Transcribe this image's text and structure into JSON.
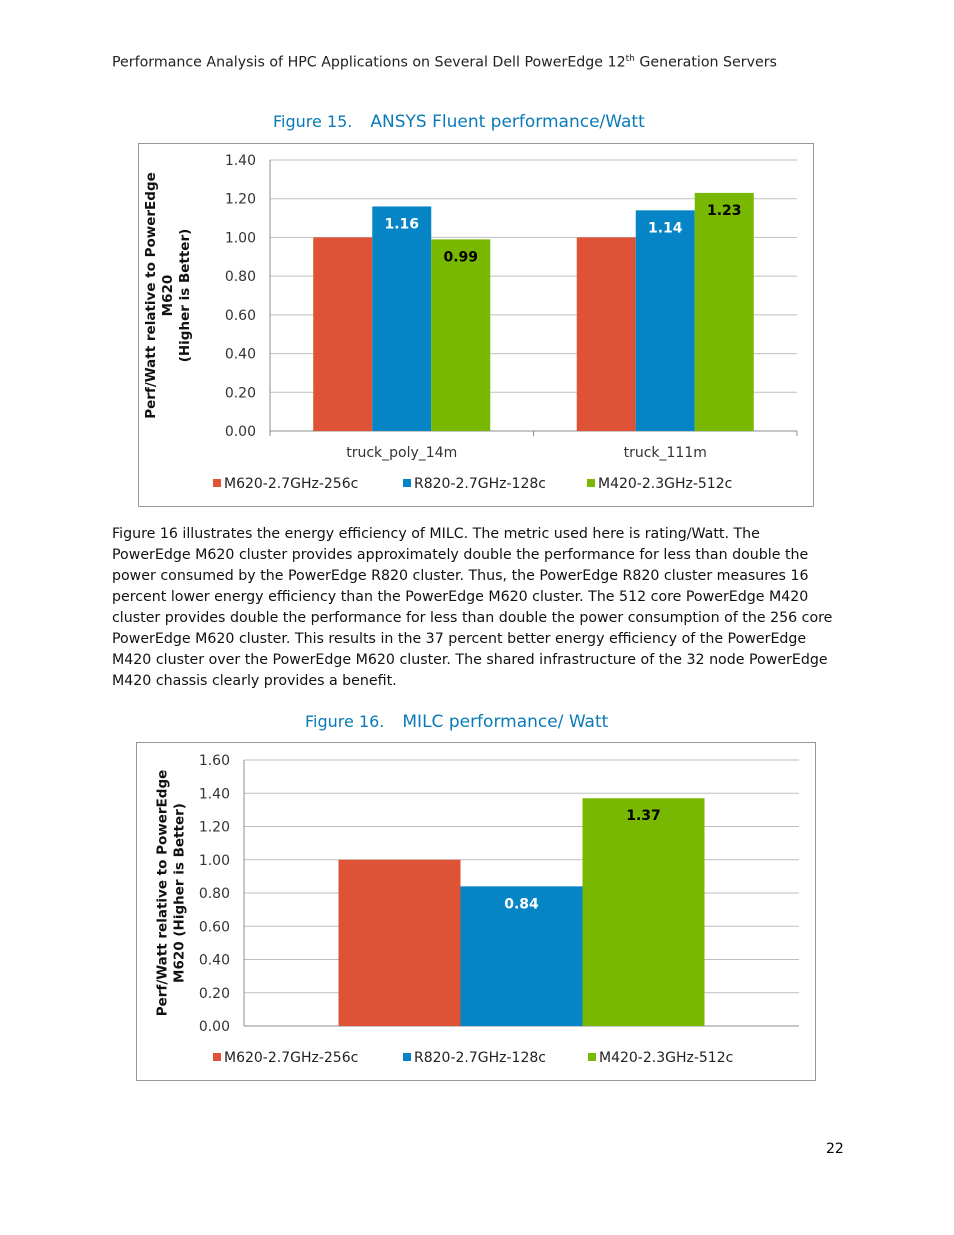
{
  "header": {
    "title_pre": "Performance Analysis of HPC Applications on Several Dell PowerEdge 12",
    "title_sup": "th",
    "title_post": " Generation Servers"
  },
  "figure15": {
    "number": "Figure 15.",
    "title": "ANSYS Fluent performance/Watt"
  },
  "figure16": {
    "number": "Figure 16.",
    "title": "MILC performance/ Watt"
  },
  "paragraph": "Figure 16 illustrates the energy efficiency of MILC. The metric used here is rating/Watt. The PowerEdge M620 cluster provides approximately double the performance for less than double the power consumed by the PowerEdge R820 cluster. Thus, the PowerEdge R820 cluster measures 16 percent lower energy efficiency than the PowerEdge M620 cluster. The 512 core PowerEdge M420 cluster provides double the performance for less than double the power consumption of the 256 core PowerEdge M620 cluster. This results in the 37 percent better energy efficiency of the PowerEdge M420 cluster over the PowerEdge M620 cluster. The shared infrastructure of the 32 node PowerEdge M420 chassis clearly provides a benefit.",
  "page_number": "22",
  "colors": {
    "m620": "#de5235",
    "r820": "#0585c6",
    "m420": "#79b800",
    "grid": "#bfbfbf",
    "axis": "#8c8c8c"
  },
  "chart_data": [
    {
      "type": "bar",
      "title": "",
      "ylabel_lines": [
        "Perf/Watt relative to PowerEdge",
        "M620",
        "(Higher is Better)"
      ],
      "xlabel": "",
      "categories": [
        "truck_poly_14m",
        "truck_111m"
      ],
      "series": [
        {
          "name": "M620-2.7GHz-256c",
          "values": [
            1.0,
            1.0
          ],
          "labels": [
            "",
            ""
          ]
        },
        {
          "name": "R820-2.7GHz-128c",
          "values": [
            1.16,
            1.14
          ],
          "labels": [
            "1.16",
            "1.14"
          ]
        },
        {
          "name": "M420-2.3GHz-512c",
          "values": [
            0.99,
            1.23
          ],
          "labels": [
            "0.99",
            "1.23"
          ]
        }
      ],
      "ylim": [
        0,
        1.4
      ],
      "yticks": [
        "0.00",
        "0.20",
        "0.40",
        "0.60",
        "0.80",
        "1.00",
        "1.20",
        "1.40"
      ],
      "grid": true,
      "legend": "bottom"
    },
    {
      "type": "bar",
      "title": "",
      "ylabel_lines": [
        "Perf/Watt relative to PowerEdge",
        "M620 (Higher is Better)"
      ],
      "xlabel": "",
      "categories": [
        ""
      ],
      "series": [
        {
          "name": "M620-2.7GHz-256c",
          "values": [
            1.0
          ],
          "labels": [
            ""
          ]
        },
        {
          "name": "R820-2.7GHz-128c",
          "values": [
            0.84
          ],
          "labels": [
            "0.84"
          ]
        },
        {
          "name": "M420-2.3GHz-512c",
          "values": [
            1.37
          ],
          "labels": [
            "1.37"
          ]
        }
      ],
      "ylim": [
        0,
        1.6
      ],
      "yticks": [
        "0.00",
        "0.20",
        "0.40",
        "0.60",
        "0.80",
        "1.00",
        "1.20",
        "1.40",
        "1.60"
      ],
      "grid": true,
      "legend": "bottom"
    }
  ]
}
